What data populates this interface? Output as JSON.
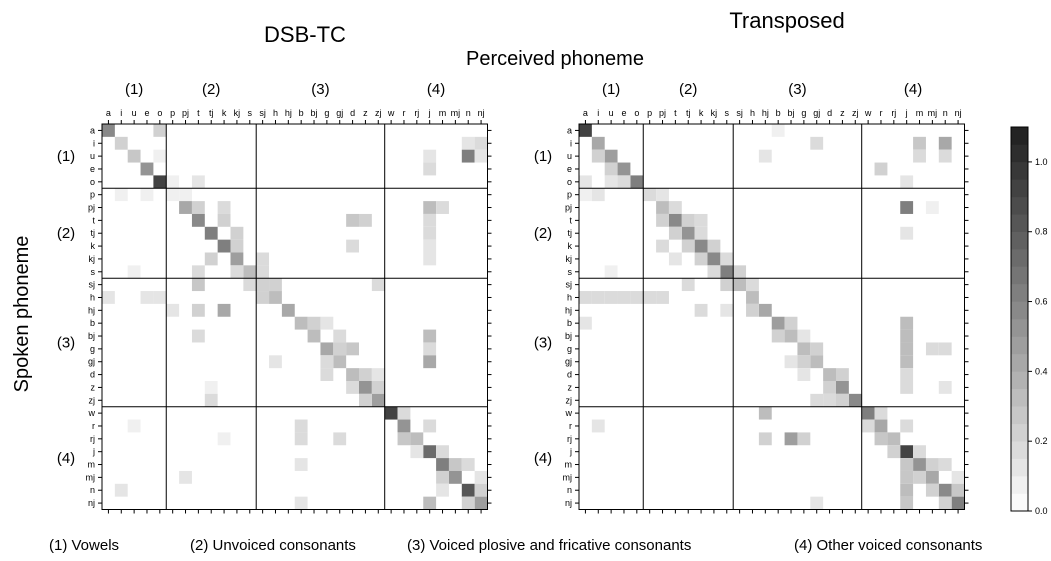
{
  "page": {
    "xlabel": "Perceived phoneme",
    "ylabel": "Spoken phoneme",
    "groups": [
      "(1)",
      "(2)",
      "(3)",
      "(4)"
    ],
    "footnotes": [
      "(1) Vowels",
      "(2) Unvoiced consonants",
      "(3) Voiced plosive and  fricative consonants",
      "(4) Other voiced consonants"
    ]
  },
  "chart_data": [
    {
      "type": "heatmap",
      "title": "DSB-TC",
      "xlabel": "Perceived phoneme",
      "ylabel": "Spoken phoneme",
      "labels": [
        "a",
        "i",
        "u",
        "e",
        "o",
        "p",
        "pj",
        "t",
        "tj",
        "k",
        "kj",
        "s",
        "sj",
        "h",
        "hj",
        "b",
        "bj",
        "g",
        "gj",
        "d",
        "z",
        "zj",
        "w",
        "r",
        "rj",
        "j",
        "m",
        "mj",
        "n",
        "nj"
      ],
      "group_boundaries_after": [
        "o",
        "s",
        "zj"
      ],
      "group_labels": [
        "(1)",
        "(2)",
        "(3)",
        "(4)"
      ],
      "value_range": [
        0,
        1.1
      ],
      "cells": [
        [
          "a",
          "a",
          0.55
        ],
        [
          "a",
          "o",
          0.2
        ],
        [
          "i",
          "i",
          0.2
        ],
        [
          "i",
          "n",
          0.12
        ],
        [
          "i",
          "nj",
          0.15
        ],
        [
          "u",
          "u",
          0.25
        ],
        [
          "u",
          "o",
          0.08
        ],
        [
          "u",
          "j",
          0.1
        ],
        [
          "u",
          "n",
          0.6
        ],
        [
          "u",
          "nj",
          0.1
        ],
        [
          "e",
          "e",
          0.5
        ],
        [
          "e",
          "j",
          0.15
        ],
        [
          "o",
          "o",
          0.95
        ],
        [
          "o",
          "p",
          0.08
        ],
        [
          "o",
          "t",
          0.1
        ],
        [
          "p",
          "p",
          0.08
        ],
        [
          "p",
          "i",
          0.08
        ],
        [
          "p",
          "e",
          0.08
        ],
        [
          "p",
          "pj",
          0.08
        ],
        [
          "pj",
          "pj",
          0.4
        ],
        [
          "pj",
          "t",
          0.2
        ],
        [
          "pj",
          "k",
          0.15
        ],
        [
          "pj",
          "j",
          0.35
        ],
        [
          "pj",
          "m",
          0.15
        ],
        [
          "t",
          "t",
          0.55
        ],
        [
          "t",
          "k",
          0.2
        ],
        [
          "t",
          "d",
          0.25
        ],
        [
          "t",
          "z",
          0.2
        ],
        [
          "t",
          "j",
          0.15
        ],
        [
          "tj",
          "tj",
          0.65
        ],
        [
          "tj",
          "kj",
          0.2
        ],
        [
          "tj",
          "j",
          0.15
        ],
        [
          "k",
          "k",
          0.65
        ],
        [
          "k",
          "kj",
          0.2
        ],
        [
          "k",
          "d",
          0.15
        ],
        [
          "k",
          "j",
          0.1
        ],
        [
          "kj",
          "kj",
          0.45
        ],
        [
          "kj",
          "tj",
          0.2
        ],
        [
          "kj",
          "sj",
          0.15
        ],
        [
          "kj",
          "j",
          0.1
        ],
        [
          "s",
          "s",
          0.35
        ],
        [
          "s",
          "t",
          0.15
        ],
        [
          "s",
          "kj",
          0.15
        ],
        [
          "s",
          "sj",
          0.15
        ],
        [
          "s",
          "u",
          0.08
        ],
        [
          "sj",
          "sj",
          0.2
        ],
        [
          "sj",
          "s",
          0.15
        ],
        [
          "sj",
          "h",
          0.2
        ],
        [
          "sj",
          "t",
          0.25
        ],
        [
          "sj",
          "zj",
          0.15
        ],
        [
          "h",
          "h",
          0.3
        ],
        [
          "h",
          "a",
          0.1
        ],
        [
          "h",
          "e",
          0.1
        ],
        [
          "h",
          "o",
          0.1
        ],
        [
          "h",
          "sj",
          0.2
        ],
        [
          "hj",
          "hj",
          0.4
        ],
        [
          "hj",
          "k",
          0.4
        ],
        [
          "hj",
          "t",
          0.2
        ],
        [
          "hj",
          "p",
          0.1
        ],
        [
          "b",
          "b",
          0.35
        ],
        [
          "b",
          "bj",
          0.2
        ],
        [
          "b",
          "g",
          0.12
        ],
        [
          "bj",
          "bj",
          0.35
        ],
        [
          "bj",
          "gj",
          0.15
        ],
        [
          "bj",
          "j",
          0.35
        ],
        [
          "bj",
          "t",
          0.15
        ],
        [
          "g",
          "g",
          0.4
        ],
        [
          "g",
          "gj",
          0.2
        ],
        [
          "g",
          "d",
          0.25
        ],
        [
          "g",
          "j",
          0.15
        ],
        [
          "gj",
          "gj",
          0.35
        ],
        [
          "gj",
          "j",
          0.4
        ],
        [
          "gj",
          "g",
          0.15
        ],
        [
          "gj",
          "h",
          0.12
        ],
        [
          "d",
          "d",
          0.35
        ],
        [
          "d",
          "z",
          0.2
        ],
        [
          "d",
          "g",
          0.15
        ],
        [
          "d",
          "zj",
          0.12
        ],
        [
          "z",
          "z",
          0.5
        ],
        [
          "z",
          "d",
          0.15
        ],
        [
          "z",
          "zj",
          0.2
        ],
        [
          "z",
          "tj",
          0.08
        ],
        [
          "zj",
          "zj",
          0.45
        ],
        [
          "zj",
          "z",
          0.2
        ],
        [
          "zj",
          "tj",
          0.15
        ],
        [
          "w",
          "w",
          0.95
        ],
        [
          "w",
          "r",
          0.15
        ],
        [
          "r",
          "r",
          0.5
        ],
        [
          "r",
          "j",
          0.15
        ],
        [
          "r",
          "u",
          0.08
        ],
        [
          "r",
          "b",
          0.15
        ],
        [
          "rj",
          "rj",
          0.3
        ],
        [
          "rj",
          "r",
          0.25
        ],
        [
          "rj",
          "b",
          0.15
        ],
        [
          "rj",
          "gj",
          0.15
        ],
        [
          "rj",
          "k",
          0.08
        ],
        [
          "j",
          "j",
          0.75
        ],
        [
          "j",
          "m",
          0.15
        ],
        [
          "j",
          "rj",
          0.12
        ],
        [
          "m",
          "m",
          0.6
        ],
        [
          "m",
          "mj",
          0.25
        ],
        [
          "m",
          "n",
          0.15
        ],
        [
          "m",
          "b",
          0.12
        ],
        [
          "mj",
          "mj",
          0.5
        ],
        [
          "mj",
          "m",
          0.2
        ],
        [
          "mj",
          "nj",
          0.12
        ],
        [
          "mj",
          "pj",
          0.12
        ],
        [
          "n",
          "n",
          0.85
        ],
        [
          "n",
          "nj",
          0.2
        ],
        [
          "n",
          "m",
          0.12
        ],
        [
          "n",
          "i",
          0.1
        ],
        [
          "nj",
          "nj",
          0.45
        ],
        [
          "nj",
          "n",
          0.2
        ],
        [
          "nj",
          "j",
          0.3
        ],
        [
          "nj",
          "b",
          0.12
        ]
      ]
    },
    {
      "type": "heatmap",
      "title": "Transposed",
      "xlabel": "Perceived phoneme",
      "ylabel": "Spoken phoneme",
      "labels": [
        "a",
        "i",
        "u",
        "e",
        "o",
        "p",
        "pj",
        "t",
        "tj",
        "k",
        "kj",
        "s",
        "sj",
        "h",
        "hj",
        "b",
        "bj",
        "g",
        "gj",
        "d",
        "z",
        "zj",
        "w",
        "r",
        "rj",
        "j",
        "m",
        "mj",
        "n",
        "nj"
      ],
      "group_boundaries_after": [
        "o",
        "s",
        "zj"
      ],
      "group_labels": [
        "(1)",
        "(2)",
        "(3)",
        "(4)"
      ],
      "value_range": [
        0,
        1.1
      ],
      "cells": [
        [
          "a",
          "a",
          0.95
        ],
        [
          "a",
          "b",
          0.08
        ],
        [
          "i",
          "i",
          0.4
        ],
        [
          "i",
          "m",
          0.25
        ],
        [
          "i",
          "n",
          0.4
        ],
        [
          "i",
          "gj",
          0.15
        ],
        [
          "u",
          "u",
          0.45
        ],
        [
          "u",
          "i",
          0.2
        ],
        [
          "u",
          "hj",
          0.1
        ],
        [
          "u",
          "m",
          0.15
        ],
        [
          "u",
          "n",
          0.15
        ],
        [
          "e",
          "e",
          0.5
        ],
        [
          "e",
          "u",
          0.2
        ],
        [
          "e",
          "r",
          0.2
        ],
        [
          "o",
          "o",
          0.65
        ],
        [
          "o",
          "e",
          0.15
        ],
        [
          "o",
          "a",
          0.1
        ],
        [
          "o",
          "u",
          0.1
        ],
        [
          "o",
          "j",
          0.1
        ],
        [
          "p",
          "p",
          0.15
        ],
        [
          "p",
          "a",
          0.08
        ],
        [
          "p",
          "i",
          0.12
        ],
        [
          "p",
          "pj",
          0.12
        ],
        [
          "pj",
          "pj",
          0.3
        ],
        [
          "pj",
          "j",
          0.6
        ],
        [
          "pj",
          "t",
          0.15
        ],
        [
          "pj",
          "mj",
          0.08
        ],
        [
          "t",
          "t",
          0.55
        ],
        [
          "t",
          "pj",
          0.2
        ],
        [
          "t",
          "tj",
          0.2
        ],
        [
          "t",
          "k",
          0.15
        ],
        [
          "tj",
          "tj",
          0.5
        ],
        [
          "tj",
          "t",
          0.2
        ],
        [
          "tj",
          "k",
          0.15
        ],
        [
          "tj",
          "j",
          0.12
        ],
        [
          "k",
          "k",
          0.55
        ],
        [
          "k",
          "pj",
          0.15
        ],
        [
          "k",
          "tj",
          0.2
        ],
        [
          "k",
          "kj",
          0.2
        ],
        [
          "kj",
          "kj",
          0.55
        ],
        [
          "kj",
          "k",
          0.2
        ],
        [
          "kj",
          "t",
          0.12
        ],
        [
          "kj",
          "s",
          0.15
        ],
        [
          "s",
          "s",
          0.65
        ],
        [
          "s",
          "sj",
          0.2
        ],
        [
          "s",
          "kj",
          0.15
        ],
        [
          "s",
          "u",
          0.08
        ],
        [
          "sj",
          "sj",
          0.35
        ],
        [
          "sj",
          "s",
          0.2
        ],
        [
          "sj",
          "h",
          0.15
        ],
        [
          "sj",
          "tj",
          0.15
        ],
        [
          "h",
          "h",
          0.3
        ],
        [
          "h",
          "a",
          0.15
        ],
        [
          "h",
          "i",
          0.15
        ],
        [
          "h",
          "u",
          0.15
        ],
        [
          "h",
          "e",
          0.15
        ],
        [
          "h",
          "o",
          0.15
        ],
        [
          "h",
          "p",
          0.15
        ],
        [
          "h",
          "pj",
          0.15
        ],
        [
          "hj",
          "hj",
          0.4
        ],
        [
          "hj",
          "h",
          0.2
        ],
        [
          "hj",
          "k",
          0.15
        ],
        [
          "hj",
          "s",
          0.12
        ],
        [
          "b",
          "b",
          0.45
        ],
        [
          "b",
          "bj",
          0.2
        ],
        [
          "b",
          "j",
          0.3
        ],
        [
          "b",
          "a",
          0.1
        ],
        [
          "bj",
          "bj",
          0.35
        ],
        [
          "bj",
          "b",
          0.2
        ],
        [
          "bj",
          "j",
          0.3
        ],
        [
          "bj",
          "g",
          0.12
        ],
        [
          "g",
          "g",
          0.35
        ],
        [
          "g",
          "gj",
          0.2
        ],
        [
          "g",
          "j",
          0.3
        ],
        [
          "g",
          "mj",
          0.15
        ],
        [
          "g",
          "n",
          0.15
        ],
        [
          "gj",
          "gj",
          0.35
        ],
        [
          "gj",
          "g",
          0.2
        ],
        [
          "gj",
          "j",
          0.35
        ],
        [
          "gj",
          "bj",
          0.12
        ],
        [
          "d",
          "d",
          0.35
        ],
        [
          "d",
          "z",
          0.2
        ],
        [
          "d",
          "j",
          0.15
        ],
        [
          "d",
          "g",
          0.12
        ],
        [
          "z",
          "z",
          0.5
        ],
        [
          "z",
          "d",
          0.2
        ],
        [
          "z",
          "j",
          0.15
        ],
        [
          "z",
          "n",
          0.1
        ],
        [
          "zj",
          "zj",
          0.55
        ],
        [
          "zj",
          "z",
          0.2
        ],
        [
          "zj",
          "d",
          0.15
        ],
        [
          "zj",
          "gj",
          0.15
        ],
        [
          "w",
          "w",
          0.65
        ],
        [
          "w",
          "r",
          0.15
        ],
        [
          "w",
          "hj",
          0.3
        ],
        [
          "r",
          "r",
          0.4
        ],
        [
          "r",
          "w",
          0.15
        ],
        [
          "r",
          "j",
          0.15
        ],
        [
          "r",
          "i",
          0.1
        ],
        [
          "rj",
          "rj",
          0.35
        ],
        [
          "rj",
          "r",
          0.25
        ],
        [
          "rj",
          "bj",
          0.45
        ],
        [
          "rj",
          "g",
          0.2
        ],
        [
          "rj",
          "hj",
          0.2
        ],
        [
          "j",
          "j",
          0.9
        ],
        [
          "j",
          "rj",
          0.2
        ],
        [
          "j",
          "m",
          0.15
        ],
        [
          "m",
          "m",
          0.5
        ],
        [
          "m",
          "mj",
          0.2
        ],
        [
          "m",
          "j",
          0.25
        ],
        [
          "m",
          "n",
          0.15
        ],
        [
          "mj",
          "mj",
          0.4
        ],
        [
          "mj",
          "m",
          0.2
        ],
        [
          "mj",
          "j",
          0.25
        ],
        [
          "mj",
          "nj",
          0.12
        ],
        [
          "n",
          "n",
          0.55
        ],
        [
          "n",
          "nj",
          0.25
        ],
        [
          "n",
          "mj",
          0.2
        ],
        [
          "n",
          "j",
          0.3
        ],
        [
          "nj",
          "nj",
          0.6
        ],
        [
          "nj",
          "n",
          0.2
        ],
        [
          "nj",
          "j",
          0.25
        ],
        [
          "nj",
          "gj",
          0.12
        ]
      ]
    }
  ],
  "colorbar": {
    "min": 0.0,
    "max": 1.1,
    "steps": 22,
    "ticks": [
      "0.0",
      "0.2",
      "0.4",
      "0.6",
      "0.8",
      "1.0"
    ],
    "tick_values": [
      0.0,
      0.2,
      0.4,
      0.6,
      0.8,
      1.0
    ]
  }
}
